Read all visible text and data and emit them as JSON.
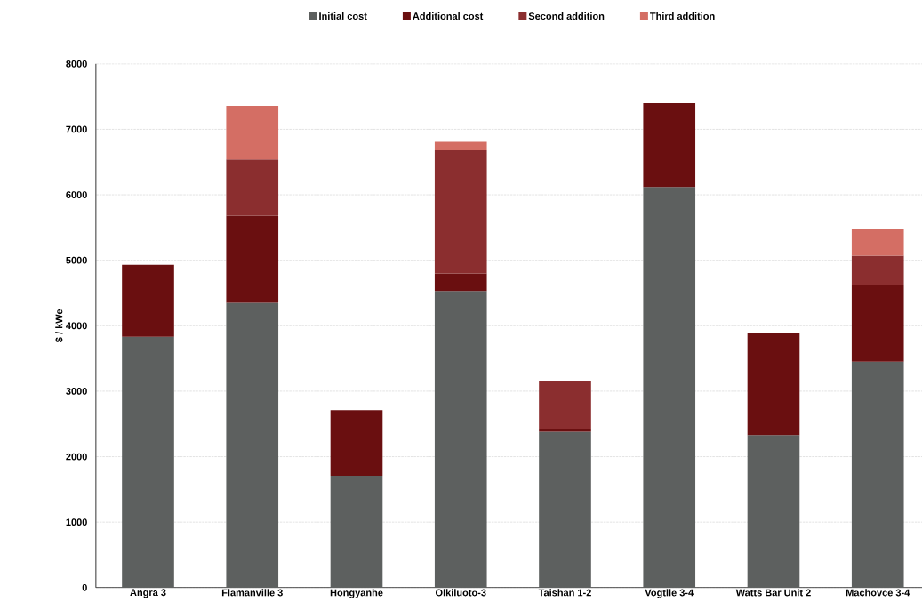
{
  "chart_data": {
    "type": "bar",
    "stacked": true,
    "ylabel": "$ / kWe",
    "categories": [
      "Angra 3",
      "Flamanville 3",
      "Hongyanhe",
      "Olkiluoto-3",
      "Taishan 1-2",
      "Vogtlle 3-4",
      "Watts Bar Unit 2",
      "Machovce 3-4"
    ],
    "series": [
      {
        "name": "Initial cost",
        "color": "#5d605f",
        "values": [
          3830,
          4350,
          1710,
          4530,
          2380,
          6120,
          2330,
          3450
        ]
      },
      {
        "name": "Additional cost",
        "color": "#6a0f10",
        "values": [
          1100,
          1330,
          1000,
          270,
          50,
          1280,
          1560,
          1170
        ]
      },
      {
        "name": "Second addition",
        "color": "#8b2e2f",
        "values": [
          null,
          860,
          null,
          1880,
          720,
          null,
          null,
          450
        ]
      },
      {
        "name": "Third addition",
        "color": "#d46e64",
        "values": [
          null,
          820,
          null,
          130,
          null,
          null,
          null,
          400
        ]
      }
    ],
    "ylim": [
      0,
      8000
    ],
    "yticks": [
      0,
      1000,
      2000,
      3000,
      4000,
      5000,
      6000,
      7000,
      8000
    ],
    "grid": "y",
    "legend": "top"
  }
}
